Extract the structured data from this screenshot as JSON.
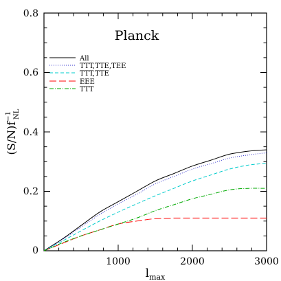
{
  "chart_data": {
    "type": "line",
    "title": "Planck",
    "xlabel": {
      "base": "l",
      "sub": "max"
    },
    "ylabel": {
      "main": "(S/N)f",
      "sup": "−1",
      "sub": "NL"
    },
    "xlim": [
      0,
      3000
    ],
    "ylim": [
      0,
      0.8
    ],
    "x_ticks": [
      1000,
      2000,
      3000
    ],
    "x_tick_labels": [
      "1000",
      "2000",
      "3000"
    ],
    "y_ticks": [
      0,
      0.2,
      0.4,
      0.6,
      0.8
    ],
    "y_tick_labels": [
      "0",
      "0.2",
      "0.4",
      "0.6",
      "0.8"
    ],
    "grid": false,
    "legend_position": "upper-left",
    "x": [
      0,
      250,
      500,
      750,
      1000,
      1250,
      1500,
      1750,
      2000,
      2250,
      2500,
      2750,
      3000
    ],
    "series": [
      {
        "name": "All",
        "color": "#000000",
        "dash": "solid",
        "values": [
          0,
          0.04,
          0.085,
          0.13,
          0.165,
          0.2,
          0.235,
          0.26,
          0.285,
          0.305,
          0.325,
          0.335,
          0.34
        ]
      },
      {
        "name": "TTT,TTE,TEE",
        "color": "#3333cc",
        "dash": "dotted",
        "values": [
          0,
          0.038,
          0.08,
          0.122,
          0.158,
          0.19,
          0.225,
          0.25,
          0.275,
          0.293,
          0.312,
          0.322,
          0.33
        ]
      },
      {
        "name": "TTT,TTE",
        "color": "#00cccc",
        "dash": "dashed",
        "values": [
          0,
          0.033,
          0.067,
          0.1,
          0.13,
          0.158,
          0.185,
          0.21,
          0.235,
          0.255,
          0.275,
          0.288,
          0.295
        ]
      },
      {
        "name": "EEE",
        "color": "#ff0000",
        "dash": "longdash",
        "values": [
          0,
          0.025,
          0.05,
          0.07,
          0.09,
          0.1,
          0.108,
          0.11,
          0.11,
          0.11,
          0.11,
          0.11,
          0.11
        ]
      },
      {
        "name": "TTT",
        "color": "#00aa00",
        "dash": "dashdot",
        "values": [
          0,
          0.027,
          0.05,
          0.07,
          0.09,
          0.11,
          0.135,
          0.155,
          0.175,
          0.19,
          0.205,
          0.21,
          0.21
        ]
      }
    ]
  }
}
